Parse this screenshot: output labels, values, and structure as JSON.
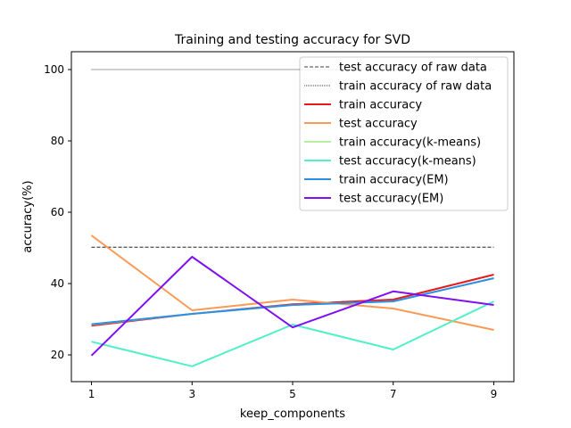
{
  "chart_data": {
    "type": "line",
    "title": "Training and testing accuracy for SVD",
    "xlabel": "keep_components",
    "ylabel": "accuracy(%)",
    "xlim": [
      0.6,
      9.4
    ],
    "ylim": [
      12.5,
      105
    ],
    "x_ticks": [
      1,
      3,
      5,
      7,
      9
    ],
    "y_ticks": [
      20,
      40,
      60,
      80,
      100
    ],
    "grid": false,
    "legend_placement": "top-right",
    "x": [
      1,
      3,
      5,
      7,
      9
    ],
    "series": [
      {
        "name": "test accuracy of raw data",
        "color": "#000000",
        "style": "dashed",
        "values": [
          50.2,
          50.2,
          50.2,
          50.2,
          50.2
        ]
      },
      {
        "name": "train accuracy of raw data",
        "color": "#000000",
        "style": "dotted",
        "values": [
          100,
          100,
          100,
          100,
          100
        ]
      },
      {
        "name": "train accuracy",
        "color": "#e41a1c",
        "style": "solid",
        "values": [
          28.2,
          31.5,
          34.2,
          35.5,
          42.5
        ]
      },
      {
        "name": "test accuracy",
        "color": "#fb9a55",
        "style": "solid",
        "values": [
          53.5,
          32.5,
          35.5,
          33.0,
          27.0
        ]
      },
      {
        "name": "train accuracy(k-means)",
        "color": "#b2f2a0",
        "style": "solid",
        "values": [
          28.5,
          31.5,
          34.0,
          35.0,
          41.5
        ]
      },
      {
        "name": "test accuracy(k-means)",
        "color": "#4ff0c8",
        "style": "solid",
        "values": [
          23.7,
          16.8,
          28.5,
          21.5,
          35.0
        ]
      },
      {
        "name": "train accuracy(EM)",
        "color": "#2b8fe5",
        "style": "solid",
        "values": [
          28.6,
          31.5,
          34.0,
          35.0,
          41.5
        ]
      },
      {
        "name": "test accuracy(EM)",
        "color": "#7f10f5",
        "style": "solid",
        "values": [
          19.8,
          47.5,
          27.7,
          37.8,
          34.0
        ]
      }
    ]
  }
}
